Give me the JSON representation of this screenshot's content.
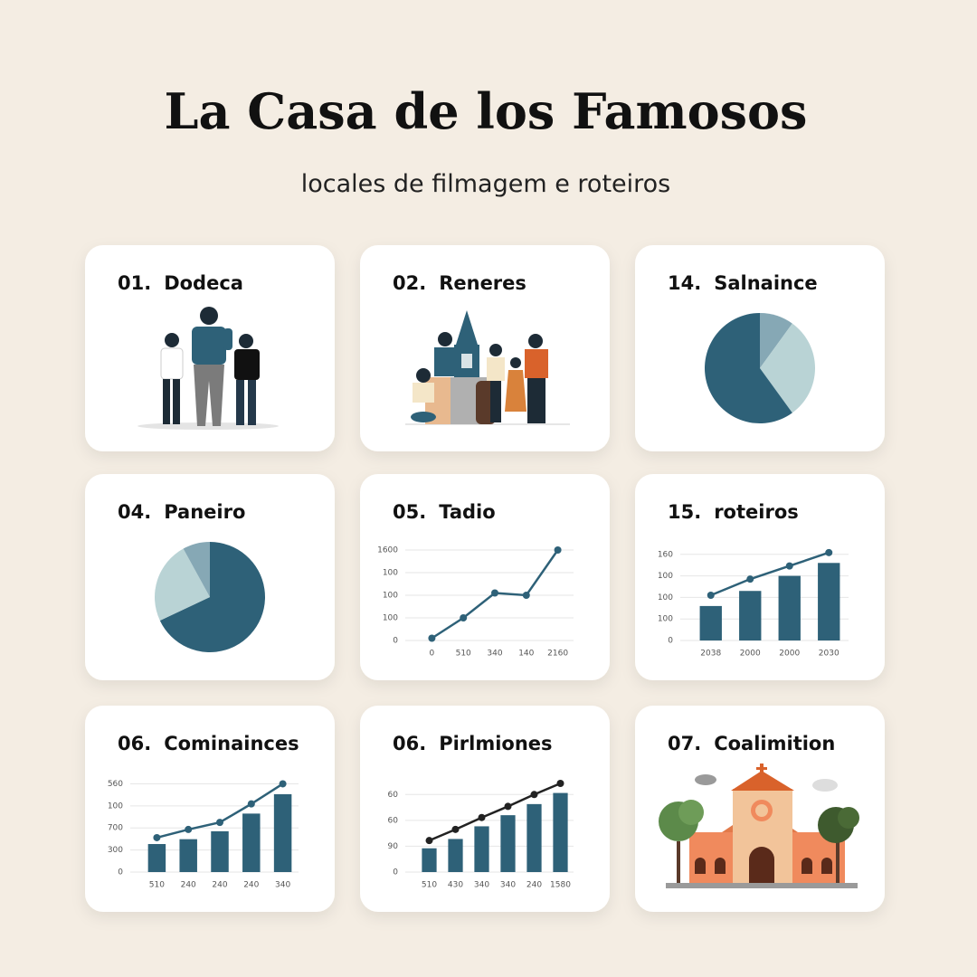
{
  "header": {
    "title": "La Casa de los Famosos",
    "subtitle": "locales de filmagem e roteiros"
  },
  "cards": [
    {
      "number": "01.",
      "name": "Dodeca"
    },
    {
      "number": "02.",
      "name": "Reneres"
    },
    {
      "number": "14.",
      "name": "Salnaince",
      "chart": {
        "type": "pie",
        "values": [
          10,
          30,
          60
        ],
        "colors": [
          "#86a8b5",
          "#b9d3d5",
          "#2e6178"
        ]
      }
    },
    {
      "number": "04.",
      "name": "Paneiro",
      "chart": {
        "type": "pie",
        "values": [
          68,
          24,
          8
        ],
        "colors": [
          "#2e6178",
          "#b9d3d5",
          "#86a8b5"
        ]
      }
    },
    {
      "number": "05.",
      "name": "Tadio",
      "chart": {
        "type": "line",
        "categories": [
          "0",
          "510",
          "340",
          "140",
          "2160"
        ],
        "ylim": [
          0,
          4
        ],
        "yticks": [
          {
            "value": 0,
            "label": "0"
          },
          {
            "value": 1,
            "label": "100"
          },
          {
            "value": 2,
            "label": "100"
          },
          {
            "value": 3,
            "label": "100"
          },
          {
            "value": 4,
            "label": "1600"
          }
        ],
        "grid": true,
        "series": [
          {
            "type": "line",
            "color": "#2e6178",
            "values": [
              0.1,
              1,
              2.1,
              2,
              4
            ]
          }
        ]
      }
    },
    {
      "number": "15.",
      "name": "roteiros",
      "chart": {
        "type": "combo",
        "categories": [
          "2038",
          "2000",
          "2000",
          "2030"
        ],
        "ylim": [
          0,
          4.2
        ],
        "yticks": [
          {
            "value": 0,
            "label": "0"
          },
          {
            "value": 1,
            "label": "100"
          },
          {
            "value": 2,
            "label": "100"
          },
          {
            "value": 3,
            "label": "100"
          },
          {
            "value": 4,
            "label": "160"
          }
        ],
        "grid": true,
        "series": [
          {
            "type": "bar",
            "color": "#2e6178",
            "values": [
              1.6,
              2.3,
              3.0,
              3.6
            ]
          },
          {
            "type": "line",
            "color": "#2e6178",
            "values": [
              2.1,
              2.85,
              3.46,
              4.08
            ]
          }
        ]
      }
    },
    {
      "number": "06.",
      "name": "Cominainces",
      "chart": {
        "type": "combo",
        "categories": [
          "510",
          "240",
          "240",
          "240",
          "340"
        ],
        "ylim": [
          0,
          4.1
        ],
        "yticks": [
          {
            "value": 0,
            "label": "0"
          },
          {
            "value": 1,
            "label": "300"
          },
          {
            "value": 2,
            "label": "700"
          },
          {
            "value": 3,
            "label": "100"
          },
          {
            "value": 4,
            "label": "560"
          }
        ],
        "grid": true,
        "series": [
          {
            "type": "bar",
            "color": "#2e6178",
            "values": [
              1.27,
              1.49,
              1.85,
              2.65,
              3.53
            ]
          },
          {
            "type": "line",
            "color": "#2e6178",
            "values": [
              1.56,
              1.93,
              2.25,
              3.09,
              4.0
            ]
          }
        ]
      }
    },
    {
      "number": "06.",
      "name": "Pirlmiones",
      "chart": {
        "type": "combo",
        "categories": [
          "510",
          "430",
          "340",
          "340",
          "240",
          "1580"
        ],
        "ylim": [
          0,
          3.5
        ],
        "yticks": [
          {
            "value": 0,
            "label": "0"
          },
          {
            "value": 1,
            "label": "90"
          },
          {
            "value": 2,
            "label": "60"
          },
          {
            "value": 3,
            "label": "60"
          }
        ],
        "grid": true,
        "series": [
          {
            "type": "bar",
            "color": "#2e6178",
            "values": [
              0.92,
              1.28,
              1.77,
              2.2,
              2.63,
              3.06
            ]
          },
          {
            "type": "line",
            "color": "#222222",
            "values": [
              1.22,
              1.65,
              2.11,
              2.54,
              3.0,
              3.43
            ]
          }
        ]
      }
    },
    {
      "number": "07.",
      "name": "Coalimition"
    }
  ]
}
